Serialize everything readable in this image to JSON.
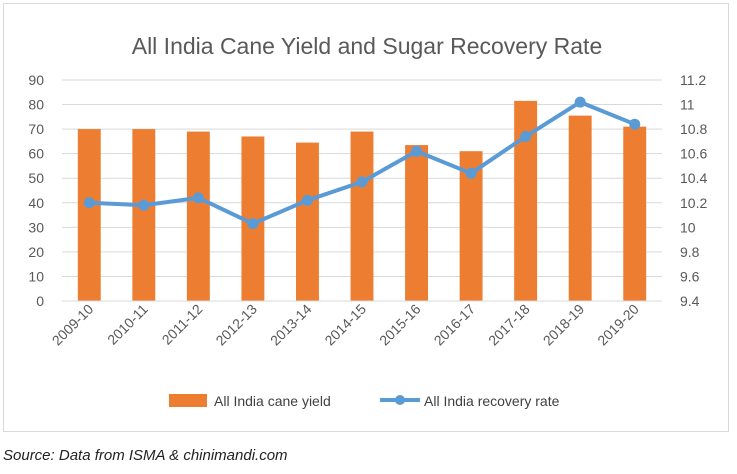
{
  "chart_data": {
    "type": "bar",
    "title": "All India Cane Yield and Sugar Recovery Rate",
    "categories": [
      "2009-10",
      "2010-11",
      "2011-12",
      "2012-13",
      "2013-14",
      "2014-15",
      "2015-16",
      "2016-17",
      "2017-18",
      "2018-19",
      "2019-20"
    ],
    "series": [
      {
        "name": "All India cane yield",
        "type": "bar",
        "axis": "left",
        "color": "#ED7D31",
        "values": [
          70,
          70,
          69,
          67,
          64.5,
          69,
          63.5,
          61,
          81.5,
          75.5,
          71
        ]
      },
      {
        "name": "All India recovery rate",
        "type": "line",
        "axis": "right",
        "color": "#5B9BD5",
        "values": [
          10.2,
          10.18,
          10.24,
          10.03,
          10.22,
          10.37,
          10.62,
          10.44,
          10.74,
          11.02,
          10.84
        ]
      }
    ],
    "y_left": {
      "min": 0,
      "max": 90,
      "ticks": [
        "0",
        "10",
        "20",
        "30",
        "40",
        "50",
        "60",
        "70",
        "80",
        "90"
      ]
    },
    "y_right": {
      "min": 9.4,
      "max": 11.2,
      "ticks": [
        "9.4",
        "9.6",
        "9.8",
        "10",
        "10.2",
        "10.4",
        "10.6",
        "10.8",
        "11",
        "11.2"
      ]
    },
    "grid": true,
    "legend_position": "bottom"
  },
  "source_text": "Source: Data from ISMA & chinimandi.com"
}
